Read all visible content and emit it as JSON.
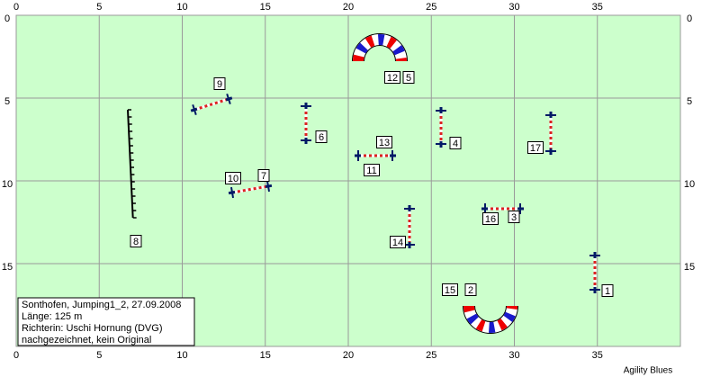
{
  "grid": {
    "xlim": [
      0,
      40
    ],
    "ylim": [
      0,
      20
    ],
    "xticks": [
      0,
      5,
      10,
      15,
      20,
      25,
      30,
      35
    ],
    "yticks": [
      0,
      5,
      10,
      15
    ]
  },
  "obstacles": [
    "1",
    "2",
    "3",
    "4",
    "5",
    "6",
    "7",
    "8",
    "9",
    "10",
    "11",
    "12",
    "13",
    "14",
    "15",
    "16",
    "17"
  ],
  "info": [
    "Sonthofen, Jumping1_2, 27.09.2008",
    "Länge: 125 m",
    "Richterin: Uschi Hornung (DVG)",
    "nachgezeichnet, kein Original"
  ],
  "footer": "Agility Blues"
}
